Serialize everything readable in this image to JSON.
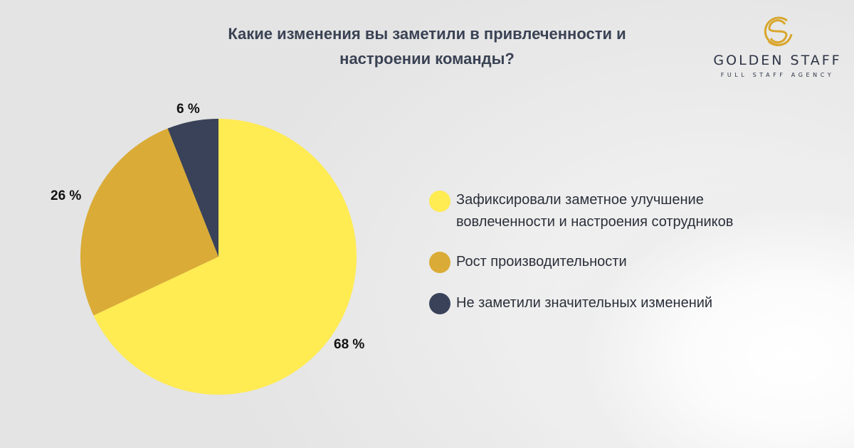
{
  "title": {
    "line1": "Какие изменения вы заметили в привлеченности и",
    "line2": "настроении команды?"
  },
  "logo": {
    "name": "GOLDEN STAFF",
    "tagline": "FULL STAFF AGENCY",
    "icon": "gold-s-circle-icon",
    "color": "#d9a62c"
  },
  "chart_data": {
    "type": "pie",
    "title": "Какие изменения вы заметили в привлеченности и настроении команды?",
    "categories": [
      "Зафиксировали заметное улучшение вовлеченности и настроения сотрудников",
      "Рост производительности",
      "Не заметили значительных изменений"
    ],
    "values": [
      68,
      26,
      6
    ],
    "labels": [
      "68 %",
      "26 %",
      "6 %"
    ],
    "colors": [
      "#ffeb52",
      "#daab36",
      "#394258"
    ],
    "legend_position": "right",
    "start_angle": "12 o'clock, clockwise"
  },
  "legend": {
    "items": [
      {
        "line1": "Зафиксировали заметное улучшение",
        "line2": "вовлеченности и настроения сотрудников",
        "color": "#ffeb52"
      },
      {
        "line1": "Рост производительности",
        "color": "#daab36"
      },
      {
        "line1": "Не заметили значительных изменений",
        "color": "#394258"
      }
    ]
  }
}
